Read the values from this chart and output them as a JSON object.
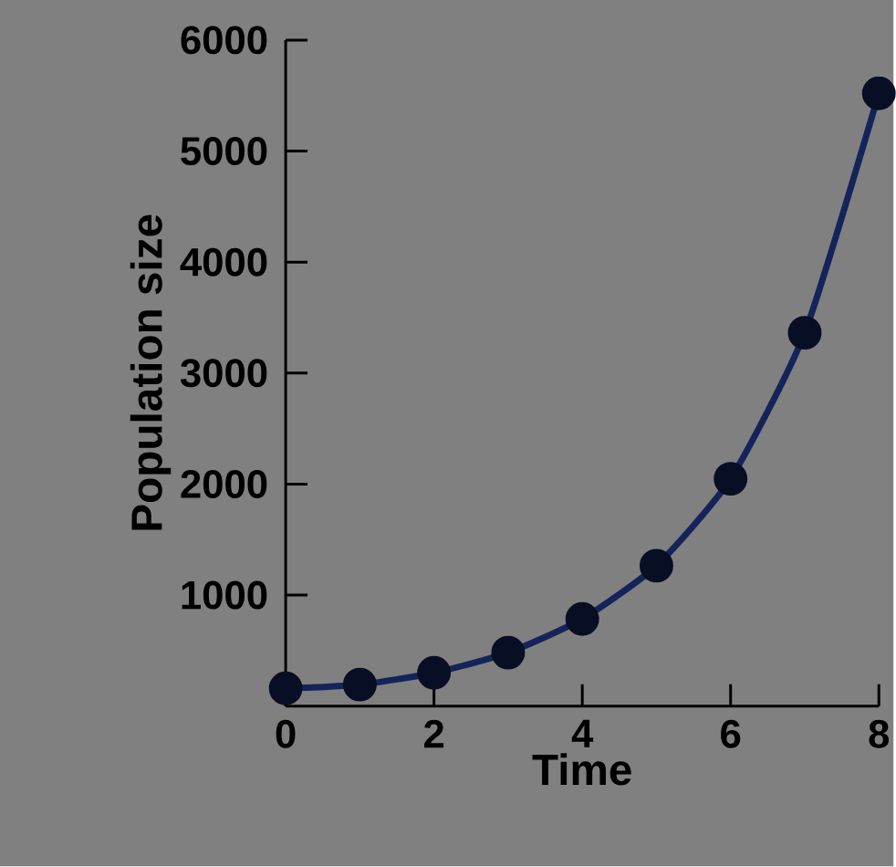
{
  "chart_data": {
    "type": "line",
    "xlabel": "Time",
    "ylabel": "Population size",
    "x": [
      0,
      1,
      2,
      3,
      4,
      5,
      6,
      7,
      8
    ],
    "series": [
      {
        "color": "#14245a",
        "values": [
          160,
          194,
          300,
          482,
          785,
          1265,
          2048,
          3363,
          5520
        ]
      }
    ],
    "xlim": [
      0,
      8
    ],
    "ylim": [
      0,
      6000
    ],
    "xticks": [
      0,
      2,
      4,
      6,
      8
    ],
    "yticks": [
      1000,
      2000,
      3000,
      4000,
      5000,
      6000
    ],
    "marker": "circle",
    "line_style": "solid"
  }
}
